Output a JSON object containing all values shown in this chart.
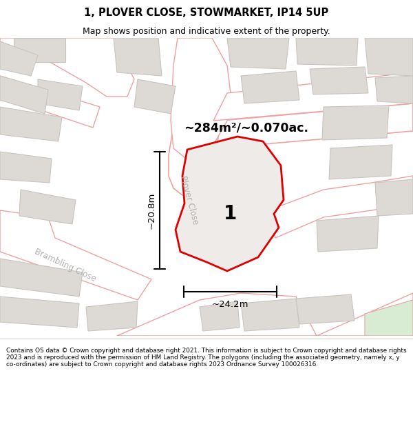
{
  "title": "1, PLOVER CLOSE, STOWMARKET, IP14 5UP",
  "subtitle": "Map shows position and indicative extent of the property.",
  "area_text": "~284m²/~0.070ac.",
  "label_1": "1",
  "dim_width": "~24.2m",
  "dim_height": "~20.8m",
  "street_label_plover": "Plover Close",
  "street_label_brambling": "Brambling Close",
  "bg_color": "#f5f3f0",
  "road_fill": "#ffffff",
  "road_stroke": "#f0a0a0",
  "building_fill": "#dddad6",
  "building_stroke": "#c8c4c0",
  "plot_fill": "#eeebe8",
  "plot_stroke": "#dd0000",
  "green_fill": "#d8ecd4",
  "footer_text": "Contains OS data © Crown copyright and database right 2021. This information is subject to Crown copyright and database rights 2023 and is reproduced with the permission of HM Land Registry. The polygons (including the associated geometry, namely x, y co-ordinates) are subject to Crown copyright and database rights 2023 Ordnance Survey 100026316."
}
